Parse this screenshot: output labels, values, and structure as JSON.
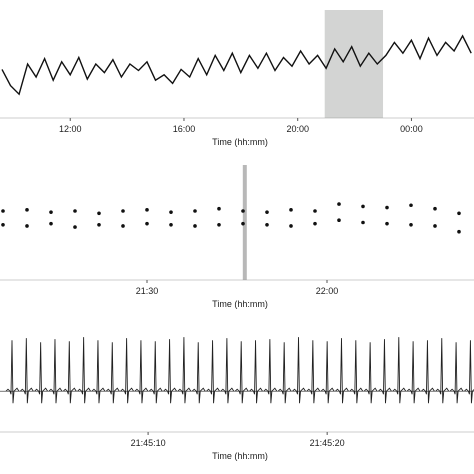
{
  "chart_data": [
    {
      "type": "line",
      "x_label": "Time (hh:mm)",
      "color": "#111111",
      "xlim": [
        9.53,
        26.2
      ],
      "ylim": [
        0,
        100
      ],
      "xticks": [
        {
          "value": 12,
          "label": "12:00"
        },
        {
          "value": 16,
          "label": "16:00"
        },
        {
          "value": 20,
          "label": "20:00"
        },
        {
          "value": 24,
          "label": "00:00"
        }
      ],
      "highlight": [
        20.95,
        23.0
      ],
      "highlight_color": "#d3d4d3",
      "x": [
        9.6,
        9.9,
        10.2,
        10.5,
        10.8,
        11.1,
        11.4,
        11.7,
        12.0,
        12.3,
        12.6,
        12.9,
        13.2,
        13.5,
        13.8,
        14.1,
        14.4,
        14.7,
        15.0,
        15.3,
        15.6,
        15.9,
        16.2,
        16.5,
        16.8,
        17.1,
        17.4,
        17.7,
        18.0,
        18.3,
        18.6,
        18.9,
        19.2,
        19.5,
        19.8,
        20.1,
        20.4,
        20.7,
        21.0,
        21.3,
        21.6,
        21.9,
        22.2,
        22.5,
        22.8,
        23.1,
        23.4,
        23.7,
        24.0,
        24.3,
        24.6,
        24.9,
        25.2,
        25.5,
        25.8,
        26.1
      ],
      "values": [
        45,
        30,
        22,
        50,
        38,
        55,
        35,
        52,
        40,
        56,
        36,
        50,
        42,
        54,
        38,
        50,
        44,
        52,
        35,
        40,
        32,
        45,
        38,
        55,
        40,
        58,
        44,
        60,
        42,
        58,
        46,
        60,
        44,
        56,
        48,
        62,
        50,
        58,
        46,
        64,
        52,
        66,
        48,
        60,
        50,
        58,
        70,
        60,
        72,
        55,
        74,
        58,
        70,
        62,
        76,
        60
      ]
    },
    {
      "type": "scatter",
      "x_label": "Time (hh:mm)",
      "xlim": [
        5.5,
        84.5
      ],
      "ylim": [
        0,
        100
      ],
      "xticks": [
        {
          "value": 30,
          "label": "21:30"
        },
        {
          "value": 60,
          "label": "22:00"
        }
      ],
      "marker": 46.3,
      "marker_color": "#b8b8b8",
      "x": [
        6,
        10,
        14,
        18,
        22,
        26,
        30,
        34,
        38,
        42,
        46,
        50,
        54,
        58,
        62,
        66,
        70,
        74,
        78,
        82
      ],
      "series": [
        {
          "color": "#111111",
          "values": [
            60,
            61,
            59,
            60,
            58,
            60,
            61,
            59,
            60,
            62,
            60,
            59,
            61,
            60,
            66,
            64,
            63,
            65,
            62,
            58
          ]
        },
        {
          "color": "#111111",
          "values": [
            48,
            47,
            49,
            46,
            48,
            47,
            49,
            48,
            47,
            48,
            49,
            48,
            47,
            49,
            52,
            50,
            49,
            48,
            47,
            42
          ]
        }
      ]
    },
    {
      "type": "ecg",
      "x_label": "Time (hh:mm)",
      "color": "#222222",
      "xlim": [
        1.73,
        28.2
      ],
      "ylim": [
        0,
        100
      ],
      "xticks": [
        {
          "value": 10,
          "label": "21:45:10"
        },
        {
          "value": 20,
          "label": "21:45:20"
        }
      ],
      "x": [
        2.4,
        3.2,
        4.0,
        4.8,
        5.6,
        6.4,
        7.2,
        8.0,
        8.8,
        9.6,
        10.4,
        11.2,
        12.0,
        12.8,
        13.6,
        14.4,
        15.2,
        16.0,
        16.8,
        17.6,
        18.4,
        19.2,
        20.0,
        20.8,
        21.6,
        22.4,
        23.2,
        24.0,
        24.8,
        25.6,
        26.4,
        27.2,
        28.0
      ],
      "values": [
        90,
        92,
        88,
        91,
        89,
        93,
        90,
        88,
        92,
        90,
        89,
        91,
        93,
        88,
        90,
        92,
        89,
        90,
        91,
        88,
        93,
        90,
        89,
        92,
        90,
        88,
        91,
        93,
        89,
        90,
        92,
        88,
        90
      ]
    }
  ]
}
